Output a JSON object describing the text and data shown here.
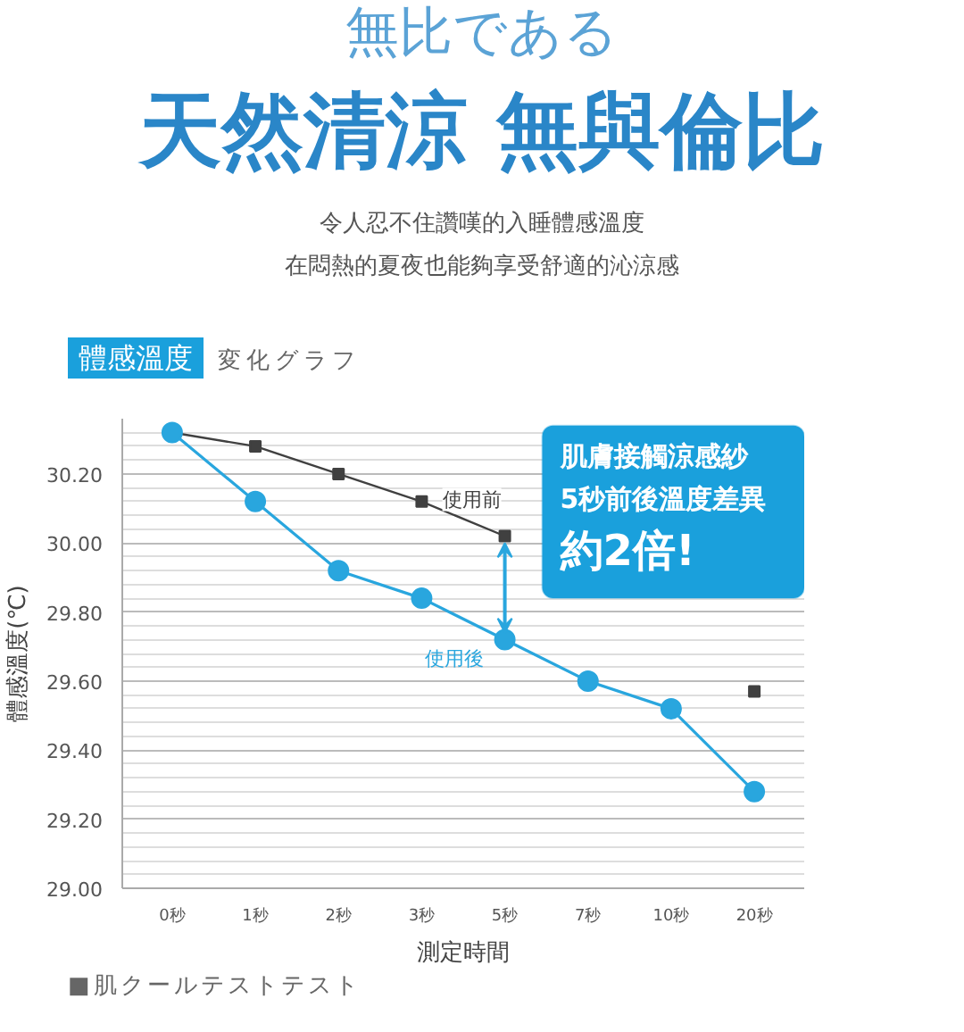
{
  "chart_data": {
    "type": "line",
    "title": "天然清涼  無與倫比",
    "subtitle": "令人忍不住讚嘆的入睡體感溫度",
    "ylabel": "體感溫度(℃)",
    "xlabel": "測定時間",
    "categories": [
      "0秒",
      "1秒",
      "2秒",
      "3秒",
      "5秒",
      "7秒",
      "10秒",
      "20秒"
    ],
    "series": [
      {
        "name": "使用前",
        "color": "#404040",
        "marker": "square",
        "values": [
          30.32,
          30.28,
          30.2,
          30.12,
          30.02,
          null,
          null,
          29.57
        ]
      },
      {
        "name": "使用後",
        "color": "#29a6de",
        "marker": "circle",
        "values": [
          30.32,
          30.12,
          29.92,
          29.84,
          29.72,
          29.6,
          29.52,
          29.28
        ]
      }
    ],
    "ylim": [
      29.0,
      30.36
    ],
    "yticks": [
      {
        "value": 29.0,
        "label": "29.00"
      },
      {
        "value": 29.04,
        "label": null
      },
      {
        "value": 29.08,
        "label": null
      },
      {
        "value": 29.12,
        "label": null
      },
      {
        "value": 29.16,
        "label": null
      },
      {
        "value": 29.2,
        "label": "29.20"
      },
      {
        "value": 29.24,
        "label": null
      },
      {
        "value": 29.28,
        "label": null
      },
      {
        "value": 29.32,
        "label": null
      },
      {
        "value": 29.36,
        "label": null
      },
      {
        "value": 29.4,
        "label": "29.40"
      },
      {
        "value": 29.44,
        "label": null
      },
      {
        "value": 29.48,
        "label": null
      },
      {
        "value": 29.52,
        "label": null
      },
      {
        "value": 29.56,
        "label": null
      },
      {
        "value": 29.6,
        "label": "29.60"
      },
      {
        "value": 29.64,
        "label": null
      },
      {
        "value": 29.68,
        "label": null
      },
      {
        "value": 29.72,
        "label": null
      },
      {
        "value": 29.76,
        "label": null
      },
      {
        "value": 29.8,
        "label": "29.80"
      },
      {
        "value": 29.84,
        "label": null
      },
      {
        "value": 29.88,
        "label": null
      },
      {
        "value": 29.92,
        "label": null
      },
      {
        "value": 29.96,
        "label": null
      },
      {
        "value": 30.0,
        "label": "30.00"
      },
      {
        "value": 30.04,
        "label": null
      },
      {
        "value": 30.08,
        "label": null
      },
      {
        "value": 30.12,
        "label": null
      },
      {
        "value": 30.16,
        "label": null
      },
      {
        "value": 30.2,
        "label": "30.20"
      },
      {
        "value": 30.24,
        "label": null
      },
      {
        "value": 30.28,
        "label": null
      },
      {
        "value": 30.32,
        "label": null
      }
    ],
    "grid": "y",
    "legend": false,
    "line_style": "solid",
    "annotations": [
      "無比である",
      "在悶熱的夏夜也能夠享受舒適的沁涼感",
      "體感溫度",
      "変化グラフ",
      "肌膚接觸涼感紗",
      "5秒前後溫度差異",
      "約2倍!",
      "■肌クールテストテスト"
    ]
  }
}
